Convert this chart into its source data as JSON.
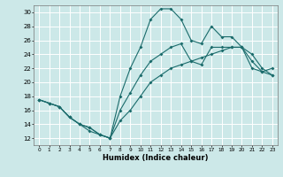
{
  "title": "",
  "xlabel": "Humidex (Indice chaleur)",
  "background_color": "#cce8e8",
  "grid_color": "#ffffff",
  "line_color": "#1a6b6b",
  "xlim": [
    -0.5,
    23.5
  ],
  "ylim": [
    11,
    31
  ],
  "yticks": [
    12,
    14,
    16,
    18,
    20,
    22,
    24,
    26,
    28,
    30
  ],
  "xticks": [
    0,
    1,
    2,
    3,
    4,
    5,
    6,
    7,
    8,
    9,
    10,
    11,
    12,
    13,
    14,
    15,
    16,
    17,
    18,
    19,
    20,
    21,
    22,
    23
  ],
  "line1_y": [
    17.5,
    17,
    16.5,
    15,
    14,
    13,
    12.5,
    12,
    18,
    22,
    25,
    29,
    30.5,
    30.5,
    29,
    26,
    25.5,
    28,
    26.5,
    26.5,
    25,
    23,
    21.5,
    22
  ],
  "line2_y": [
    17.5,
    17,
    16.5,
    15,
    14,
    13.5,
    12.5,
    12,
    16,
    18.5,
    21,
    23,
    24,
    25,
    25.5,
    23,
    22.5,
    25,
    25,
    25,
    25,
    24,
    22,
    21
  ],
  "line3_y": [
    17.5,
    17,
    16.5,
    15,
    14,
    13.5,
    12.5,
    12,
    14.5,
    16,
    18,
    20,
    21,
    22,
    22.5,
    23,
    23.5,
    24,
    24.5,
    25,
    25,
    22,
    21.5,
    21
  ]
}
